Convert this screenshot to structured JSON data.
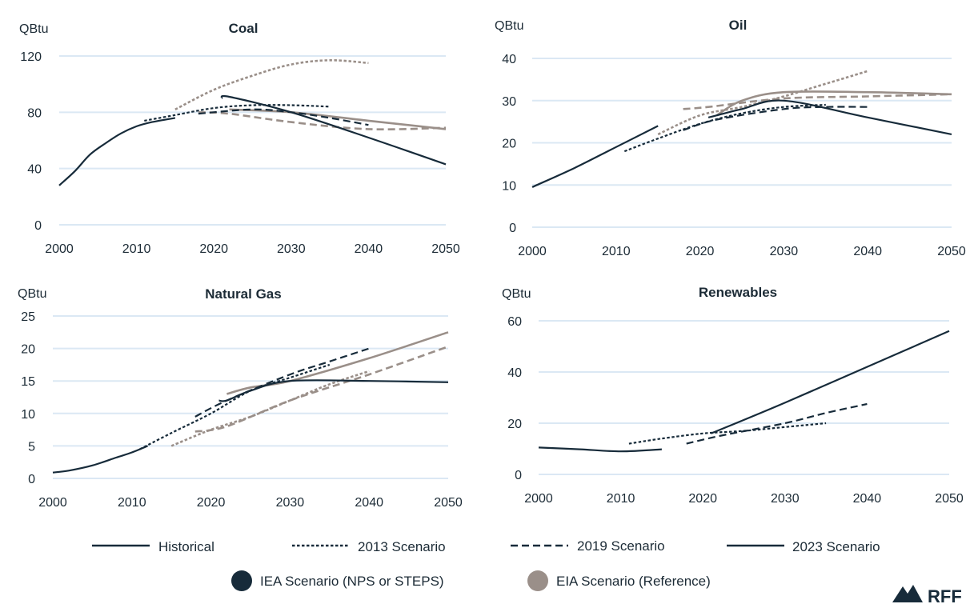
{
  "colors": {
    "iea": "#172b3a",
    "eia": "#9a8f89",
    "grid": "#dbe8f4",
    "text": "#1c2b36"
  },
  "legend": {
    "line_styles": [
      {
        "label": "Historical",
        "style": "solid"
      },
      {
        "label": "2013 Scenario",
        "style": "dotted"
      },
      {
        "label": "2019 Scenario",
        "style": "dashed"
      },
      {
        "label": "2023 Scenario",
        "style": "solid"
      }
    ],
    "sources": [
      {
        "label": "IEA Scenario (NPS or STEPS)",
        "color": "#172b3a"
      },
      {
        "label": "EIA Scenario (Reference)",
        "color": "#9a8f89"
      }
    ]
  },
  "logo": {
    "text": "RFF"
  },
  "chart_data": [
    {
      "type": "line",
      "title": "Coal",
      "ylabel": "QBtu",
      "xlim": [
        2000,
        2050
      ],
      "ylim": [
        0,
        120
      ],
      "yticks": [
        0,
        40,
        80,
        120
      ],
      "xticks": [
        2000,
        2010,
        2020,
        2030,
        2040,
        2050
      ],
      "series": [
        {
          "source": "IEA",
          "style": "historical",
          "x": [
            2000,
            2002,
            2004,
            2006,
            2008,
            2010,
            2012,
            2015
          ],
          "y": [
            28,
            38,
            50,
            58,
            65,
            70,
            73,
            76
          ]
        },
        {
          "source": "IEA",
          "style": "2013",
          "x": [
            2011,
            2015,
            2020,
            2025,
            2030,
            2035
          ],
          "y": [
            74,
            78,
            83,
            85,
            85,
            84
          ]
        },
        {
          "source": "IEA",
          "style": "2019",
          "x": [
            2018,
            2025,
            2030,
            2035,
            2040
          ],
          "y": [
            79,
            82,
            80,
            76,
            71
          ]
        },
        {
          "source": "IEA",
          "style": "2023",
          "x": [
            2021,
            2022,
            2030,
            2040,
            2050
          ],
          "y": [
            90,
            91,
            80,
            62,
            43
          ]
        },
        {
          "source": "EIA",
          "style": "2013",
          "x": [
            2015,
            2020,
            2025,
            2030,
            2035,
            2040
          ],
          "y": [
            82,
            96,
            106,
            114,
            117,
            115
          ]
        },
        {
          "source": "EIA",
          "style": "2019",
          "x": [
            2018,
            2022,
            2030,
            2040,
            2050
          ],
          "y": [
            80,
            79,
            73,
            68,
            69
          ]
        },
        {
          "source": "EIA",
          "style": "2023",
          "x": [
            2022,
            2030,
            2040,
            2050
          ],
          "y": [
            82,
            80,
            74,
            68
          ]
        }
      ]
    },
    {
      "type": "line",
      "title": "Oil",
      "ylabel": "QBtu",
      "xlim": [
        2000,
        2050
      ],
      "ylim": [
        0,
        40
      ],
      "yticks": [
        0,
        10,
        20,
        30,
        40
      ],
      "xticks": [
        2000,
        2010,
        2020,
        2030,
        2040,
        2050
      ],
      "series": [
        {
          "source": "IEA",
          "style": "historical",
          "x": [
            2000,
            2005,
            2010,
            2015
          ],
          "y": [
            9.5,
            14,
            19,
            24
          ]
        },
        {
          "source": "IEA",
          "style": "2013",
          "x": [
            2011,
            2015,
            2020,
            2025,
            2030,
            2035
          ],
          "y": [
            18,
            21,
            24.5,
            27,
            28.5,
            29
          ]
        },
        {
          "source": "IEA",
          "style": "2019",
          "x": [
            2018,
            2022,
            2030,
            2035,
            2040
          ],
          "y": [
            23,
            25.5,
            28,
            28.5,
            28.5
          ]
        },
        {
          "source": "IEA",
          "style": "2023",
          "x": [
            2021,
            2022,
            2025,
            2030,
            2040,
            2050
          ],
          "y": [
            26,
            26.5,
            28,
            30,
            26,
            22
          ]
        },
        {
          "source": "EIA",
          "style": "2013",
          "x": [
            2015,
            2020,
            2025,
            2030,
            2035,
            2040
          ],
          "y": [
            22,
            26.5,
            28.5,
            31,
            34,
            37
          ]
        },
        {
          "source": "EIA",
          "style": "2019",
          "x": [
            2018,
            2021,
            2030,
            2040,
            2050
          ],
          "y": [
            28,
            28.5,
            30.5,
            31,
            31.5
          ]
        },
        {
          "source": "EIA",
          "style": "2023",
          "x": [
            2022,
            2025,
            2030,
            2040,
            2050
          ],
          "y": [
            26.5,
            30,
            32,
            32,
            31.5
          ]
        }
      ]
    },
    {
      "type": "line",
      "title": "Natural Gas",
      "ylabel": "QBtu",
      "xlim": [
        2000,
        2050
      ],
      "ylim": [
        0,
        25
      ],
      "yticks": [
        0,
        5,
        10,
        15,
        20,
        25
      ],
      "xticks": [
        2000,
        2010,
        2020,
        2030,
        2040,
        2050
      ],
      "series": [
        {
          "source": "IEA",
          "style": "historical",
          "x": [
            2000,
            2002,
            2005,
            2008,
            2010,
            2012
          ],
          "y": [
            0.9,
            1.2,
            2,
            3.2,
            4,
            5
          ]
        },
        {
          "source": "IEA",
          "style": "2013",
          "x": [
            2011,
            2015,
            2020,
            2025,
            2030,
            2035
          ],
          "y": [
            4.5,
            7,
            10,
            13.5,
            15.5,
            17.5
          ]
        },
        {
          "source": "IEA",
          "style": "2019",
          "x": [
            2018,
            2022,
            2030,
            2035,
            2040
          ],
          "y": [
            9.5,
            12,
            16,
            18,
            20
          ]
        },
        {
          "source": "IEA",
          "style": "2023",
          "x": [
            2021,
            2022,
            2025,
            2030,
            2040,
            2050
          ],
          "y": [
            12,
            12,
            13.5,
            15,
            15,
            14.8
          ]
        },
        {
          "source": "EIA",
          "style": "2013",
          "x": [
            2015,
            2020,
            2025,
            2030,
            2035,
            2040
          ],
          "y": [
            5,
            7.5,
            9.5,
            12,
            14.5,
            16.5
          ]
        },
        {
          "source": "EIA",
          "style": "2019",
          "x": [
            2018,
            2022,
            2030,
            2040,
            2050
          ],
          "y": [
            7.2,
            8,
            12,
            16,
            20.3
          ]
        },
        {
          "source": "EIA",
          "style": "2023",
          "x": [
            2022,
            2025,
            2030,
            2040,
            2050
          ],
          "y": [
            13,
            14,
            15,
            18.5,
            22.5
          ]
        }
      ]
    },
    {
      "type": "line",
      "title": "Renewables",
      "ylabel": "QBtu",
      "xlim": [
        2000,
        2050
      ],
      "ylim": [
        0,
        60
      ],
      "yticks": [
        0,
        20,
        40,
        60
      ],
      "xticks": [
        2000,
        2010,
        2020,
        2030,
        2040,
        2050
      ],
      "series": [
        {
          "source": "IEA",
          "style": "historical",
          "x": [
            2000,
            2005,
            2010,
            2015
          ],
          "y": [
            10.5,
            9.8,
            9,
            9.8
          ]
        },
        {
          "source": "IEA",
          "style": "2013",
          "x": [
            2011,
            2015,
            2020,
            2025,
            2030,
            2035
          ],
          "y": [
            12,
            14,
            16,
            17,
            18.5,
            20
          ]
        },
        {
          "source": "IEA",
          "style": "2019",
          "x": [
            2018,
            2022,
            2030,
            2035,
            2040
          ],
          "y": [
            12,
            15,
            20,
            24,
            27.5
          ]
        },
        {
          "source": "IEA",
          "style": "2023",
          "x": [
            2021,
            2030,
            2040,
            2050
          ],
          "y": [
            16,
            28,
            42,
            56
          ]
        }
      ]
    }
  ]
}
